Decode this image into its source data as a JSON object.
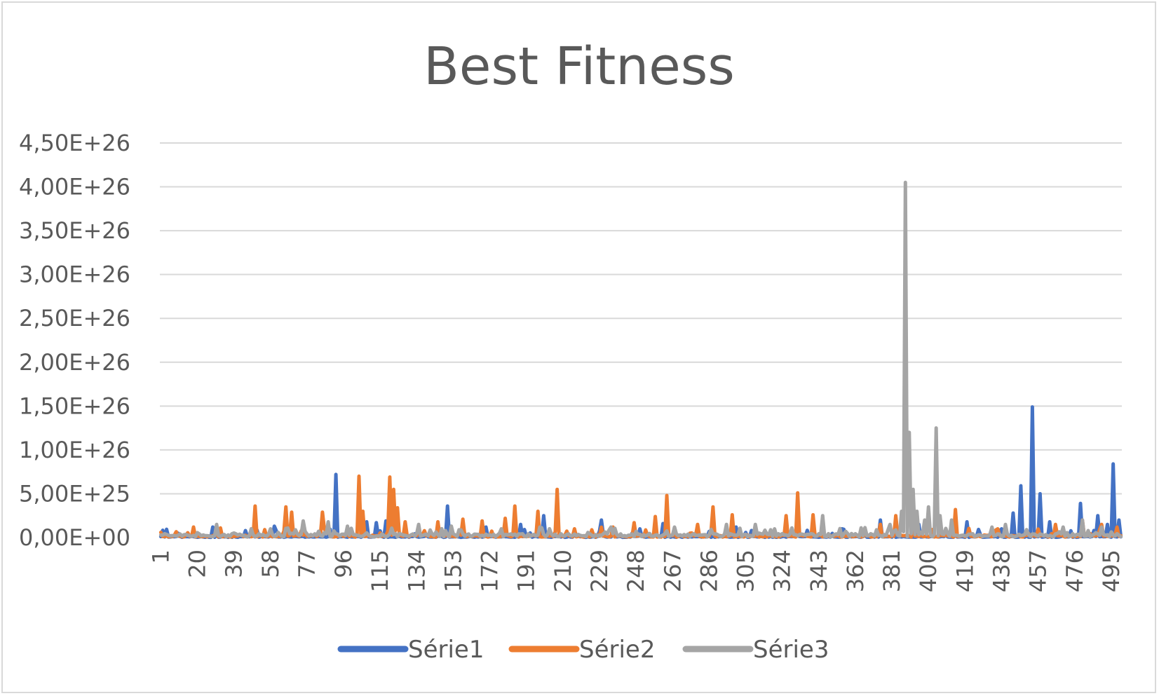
{
  "chart_data": {
    "type": "line",
    "title": "Best Fitness",
    "xlabel": "",
    "ylabel": "",
    "ylim": [
      0,
      4.5e+26
    ],
    "yticks": [
      "0,00E+00",
      "5,00E+25",
      "1,00E+26",
      "1,50E+26",
      "2,00E+26",
      "2,50E+26",
      "3,00E+26",
      "3,50E+26",
      "4,00E+26",
      "4,50E+26"
    ],
    "x_count": 500,
    "xticks": [
      "1",
      "20",
      "39",
      "58",
      "77",
      "96",
      "115",
      "134",
      "153",
      "172",
      "191",
      "210",
      "229",
      "248",
      "267",
      "286",
      "305",
      "324",
      "343",
      "362",
      "381",
      "400",
      "419",
      "438",
      "457",
      "476",
      "495"
    ],
    "grid": true,
    "legend_position": "bottom",
    "series": [
      {
        "name": "Série1",
        "color": "#4472c4",
        "baseline": 1e+24,
        "peaks": [
          [
            10,
            5e+24
          ],
          [
            28,
            1.2e+25
          ],
          [
            45,
            8e+24
          ],
          [
            60,
            1.3e+25
          ],
          [
            92,
            7.2e+25
          ],
          [
            108,
            1.8e+25
          ],
          [
            113,
            1.7e+25
          ],
          [
            118,
            1.9e+25
          ],
          [
            150,
            3.6e+25
          ],
          [
            170,
            1.2e+25
          ],
          [
            188,
            1.5e+25
          ],
          [
            200,
            2.5e+25
          ],
          [
            230,
            2e+25
          ],
          [
            250,
            1e+25
          ],
          [
            262,
            1.6e+25
          ],
          [
            300,
            1.2e+25
          ],
          [
            332,
            2.3e+25
          ],
          [
            355,
            1e+25
          ],
          [
            375,
            2e+25
          ],
          [
            395,
            1.5e+25
          ],
          [
            420,
            1.8e+25
          ],
          [
            438,
            1e+25
          ],
          [
            444,
            2.8e+25
          ],
          [
            448,
            5.9e+25
          ],
          [
            454,
            1.49e+26
          ],
          [
            458,
            5e+25
          ],
          [
            463,
            1.8e+25
          ],
          [
            470,
            1e+25
          ],
          [
            479,
            3.9e+25
          ],
          [
            488,
            2.5e+25
          ],
          [
            493,
            1.5e+25
          ],
          [
            496,
            8.4e+25
          ],
          [
            499,
            2e+25
          ]
        ]
      },
      {
        "name": "Série2",
        "color": "#ed7d31",
        "baseline": 2e+24,
        "peaks": [
          [
            1,
            6e+24
          ],
          [
            18,
            1.2e+25
          ],
          [
            32,
            1.1e+25
          ],
          [
            50,
            3.6e+25
          ],
          [
            66,
            3.5e+25
          ],
          [
            69,
            2.9e+25
          ],
          [
            85,
            2.9e+25
          ],
          [
            104,
            7e+25
          ],
          [
            106,
            3e+25
          ],
          [
            120,
            6.9e+25
          ],
          [
            122,
            5.5e+25
          ],
          [
            124,
            3.4e+25
          ],
          [
            128,
            1.8e+25
          ],
          [
            145,
            1.8e+25
          ],
          [
            158,
            2.1e+25
          ],
          [
            168,
            1.9e+25
          ],
          [
            180,
            2.2e+25
          ],
          [
            185,
            3.6e+25
          ],
          [
            197,
            3e+25
          ],
          [
            207,
            5.5e+25
          ],
          [
            216,
            1e+25
          ],
          [
            236,
            1.2e+25
          ],
          [
            247,
            1.7e+25
          ],
          [
            258,
            2.4e+25
          ],
          [
            264,
            4.8e+25
          ],
          [
            280,
            1.5e+25
          ],
          [
            288,
            3.5e+25
          ],
          [
            298,
            2.6e+25
          ],
          [
            326,
            2.5e+25
          ],
          [
            332,
            5.1e+25
          ],
          [
            340,
            2.6e+25
          ],
          [
            375,
            1.5e+25
          ],
          [
            383,
            2.5e+25
          ],
          [
            392,
            1.8e+25
          ],
          [
            414,
            3.2e+25
          ],
          [
            436,
            1e+25
          ],
          [
            466,
            1.5e+25
          ],
          [
            480,
            2e+25
          ],
          [
            490,
            1.5e+25
          ],
          [
            498,
            1.2e+25
          ]
        ]
      },
      {
        "name": "Série3",
        "color": "#a5a5a5",
        "baseline": 3e+24,
        "peaks": [
          [
            30,
            1.5e+25
          ],
          [
            58,
            1e+25
          ],
          [
            75,
            1.9e+25
          ],
          [
            88,
            1.8e+25
          ],
          [
            98,
            1.3e+25
          ],
          [
            135,
            1.5e+25
          ],
          [
            178,
            1e+25
          ],
          [
            198,
            1.2e+25
          ],
          [
            235,
            1.2e+25
          ],
          [
            268,
            1.2e+25
          ],
          [
            295,
            1.5e+25
          ],
          [
            310,
            1.5e+25
          ],
          [
            320,
            1e+25
          ],
          [
            345,
            2.5e+25
          ],
          [
            380,
            1.5e+25
          ],
          [
            386,
            3e+25
          ],
          [
            388,
            4.05e+26
          ],
          [
            390,
            1.2e+26
          ],
          [
            392,
            5.5e+25
          ],
          [
            394,
            3e+25
          ],
          [
            398,
            2e+25
          ],
          [
            400,
            3.5e+25
          ],
          [
            404,
            1.25e+26
          ],
          [
            406,
            2.5e+25
          ],
          [
            412,
            2e+25
          ],
          [
            440,
            1.5e+25
          ],
          [
            470,
            1.2e+25
          ],
          [
            480,
            2e+25
          ],
          [
            490,
            1.2e+25
          ]
        ]
      }
    ]
  }
}
